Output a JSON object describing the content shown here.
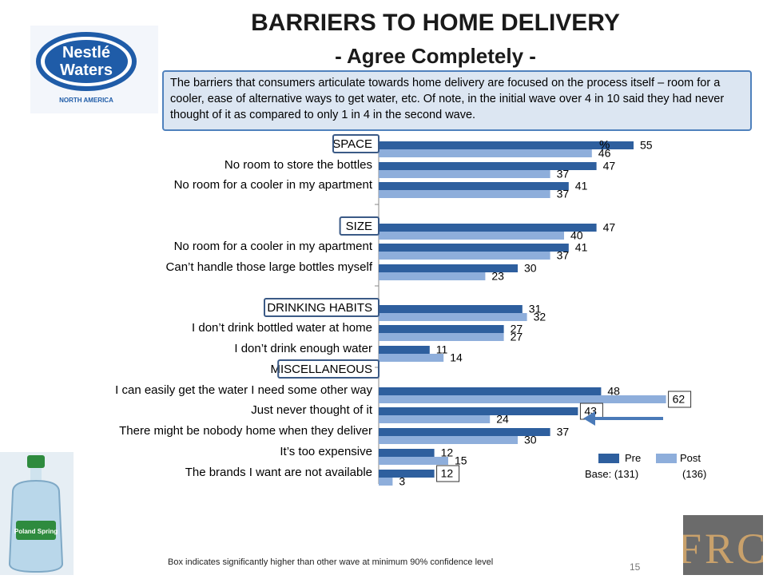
{
  "title": "BARRIERS TO HOME DELIVERY",
  "subtitle": "- Agree Completely -",
  "callout_text": "The barriers that consumers articulate towards home delivery are focused on the process itself – room for a cooler, ease of alternative ways to get water, etc.  Of note, in the initial wave over 4 in 10 said they had never thought of it as compared to only 1 in 4 in the second wave.",
  "unit_label": "%",
  "logo_text": {
    "line1": "Nestlé",
    "line2": "Waters",
    "line3": "NORTH AMERICA"
  },
  "bottle_brand": "Poland Spring",
  "frc_text": "FRC",
  "legend": {
    "pre_label": "Pre",
    "post_label": "Post",
    "base_pre": "Base: (131)",
    "base_post": "(136)"
  },
  "footnote": "Box indicates significantly higher than other wave at minimum 90% confidence level",
  "page_number": "15",
  "colors": {
    "pre": "#2e5f9e",
    "post": "#8eaedb",
    "callout_bg": "#dce6f2",
    "callout_border": "#4f81bd",
    "arrow": "#4a7ab8"
  },
  "chart_data": {
    "type": "bar",
    "orientation": "horizontal",
    "series": [
      {
        "name": "Pre",
        "values": [
          55,
          47,
          41,
          47,
          41,
          30,
          31,
          27,
          11,
          48,
          43,
          37,
          12,
          12
        ]
      },
      {
        "name": "Post",
        "values": [
          46,
          37,
          37,
          40,
          37,
          23,
          32,
          27,
          14,
          62,
          24,
          30,
          15,
          3
        ]
      }
    ],
    "categories": [
      "SPACE",
      "No room to store the bottles",
      "No room for a cooler in my apartment",
      "SIZE",
      "No room for a cooler in my apartment",
      "Can’t handle those large bottles myself",
      "DRINKING HABITS",
      "I don’t drink bottled water at home",
      "I don’t drink enough water",
      "I can easily get the water I need some other way",
      "Just never thought of it",
      "There might be nobody home when they deliver",
      "It’s too expensive",
      "The brands I want are not available"
    ],
    "section_headers": [
      "SPACE",
      "SIZE",
      "DRINKING HABITS",
      "MISCELLANEOUS"
    ],
    "boxed_values": [
      {
        "category": "I can easily get the water I need some other way",
        "series": "Post",
        "value": 62
      },
      {
        "category": "Just never thought of it",
        "series": "Pre",
        "value": 43
      },
      {
        "category": "The brands I want are not available",
        "series": "Pre",
        "value": 12
      }
    ],
    "xlim": [
      0,
      100
    ],
    "grid": false,
    "legend_position": "bottom-right"
  }
}
